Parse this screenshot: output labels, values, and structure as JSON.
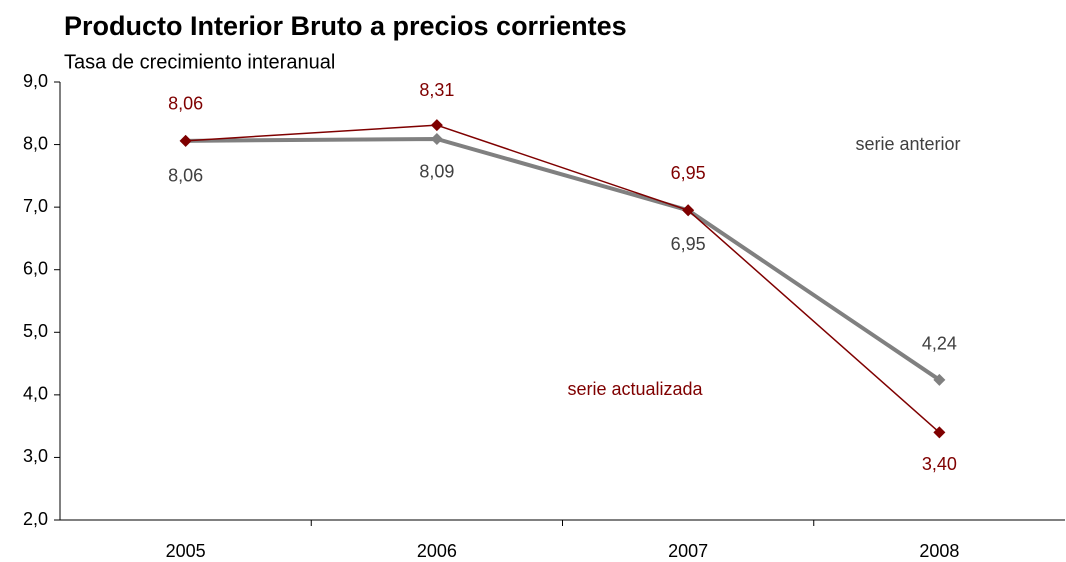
{
  "chart_data": {
    "type": "line",
    "title": "Producto Interior Bruto a precios corrientes",
    "subtitle": "Tasa de crecimiento interanual",
    "categories": [
      "2005",
      "2006",
      "2007",
      "2008"
    ],
    "series": [
      {
        "name": "serie anterior",
        "color": "#808080",
        "values": [
          8.06,
          8.09,
          6.95,
          4.24
        ],
        "value_labels": [
          "8,06",
          "8,09",
          "6,95",
          "4,24"
        ]
      },
      {
        "name": "serie actualizada",
        "color": "#7f0000",
        "values": [
          8.06,
          8.31,
          6.95,
          3.4
        ],
        "value_labels": [
          "8,06",
          "8,31",
          "6,95",
          "3,40"
        ]
      }
    ],
    "ylim": [
      2,
      9
    ],
    "yticks": [
      {
        "value": 2,
        "label": "2,0"
      },
      {
        "value": 3,
        "label": "3,0"
      },
      {
        "value": 4,
        "label": "4,0"
      },
      {
        "value": 5,
        "label": "5,0"
      },
      {
        "value": 6,
        "label": "6,0"
      },
      {
        "value": 7,
        "label": "7,0"
      },
      {
        "value": 8,
        "label": "8,0"
      },
      {
        "value": 9,
        "label": "9,0"
      }
    ],
    "grid": false
  }
}
